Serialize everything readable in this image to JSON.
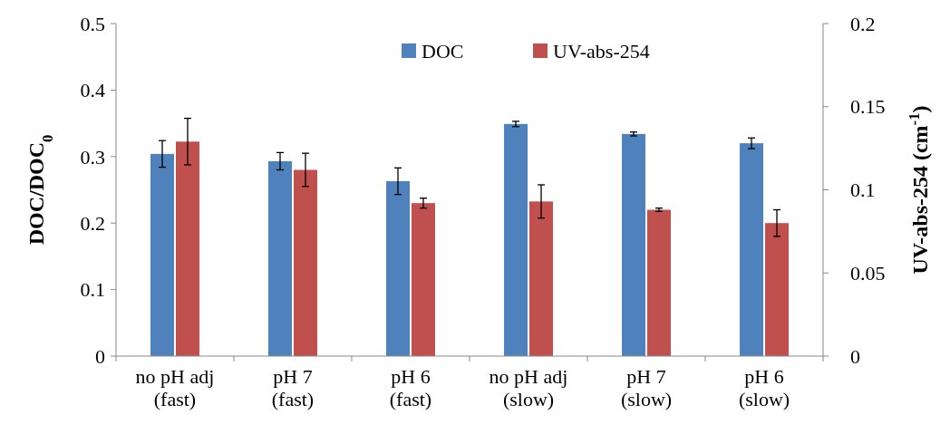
{
  "chart_data": {
    "type": "bar",
    "categories": [
      "no pH adj\n(fast)",
      "pH 7\n(fast)",
      "pH 6\n(fast)",
      "no pH adj\n(slow)",
      "pH 7\n(slow)",
      "pH 6\n(slow)"
    ],
    "ylabel": "DOC/DOC$_{0}$",
    "y2label": "UV-abs-254 (cm$^{-1}$)",
    "ylim": [
      0,
      0.5
    ],
    "yticks": [
      0,
      0.1,
      0.2,
      0.3,
      0.4,
      0.5
    ],
    "y2lim": [
      0,
      0.2
    ],
    "y2ticks": [
      0,
      0.05,
      0.1,
      0.15,
      0.2
    ],
    "series": [
      {
        "name": "DOC",
        "color": "#4f81bd",
        "values": [
          0.304,
          0.293,
          0.263,
          0.349,
          0.334,
          0.32
        ],
        "errors": [
          0.02,
          0.013,
          0.02,
          0.004,
          0.003,
          0.008
        ]
      },
      {
        "name": "UV-abs-254",
        "color": "#c0504d",
        "axis": "y2",
        "values": [
          0.129,
          0.112,
          0.092,
          0.093,
          0.088,
          0.08
        ],
        "errors": [
          0.014,
          0.01,
          0.003,
          0.01,
          0.001,
          0.008
        ]
      }
    ],
    "legend": "top",
    "grid": false
  }
}
